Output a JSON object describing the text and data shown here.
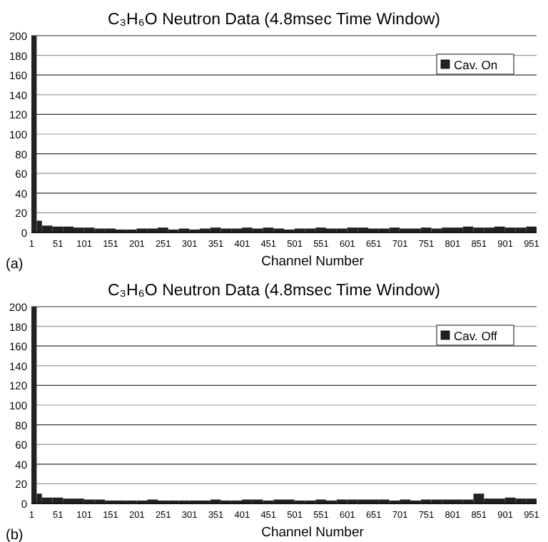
{
  "chart_data": [
    {
      "type": "histogram",
      "title": "C₃H₆O Neutron Data (4.8msec Time Window)",
      "xlabel": "Channel Number",
      "annotations": [
        "(a)"
      ],
      "legend": "top right",
      "grid": "y",
      "bins": [
        0.5,
        10.5,
        20.5,
        40.5,
        60.5,
        80.5,
        100.5,
        120.5,
        140.5,
        160.5,
        180.5,
        200.5,
        220.5,
        240.5,
        260.5,
        280.5,
        300.5,
        320.5,
        340.5,
        360.5,
        380.5,
        400.5,
        420.5,
        440.5,
        460.5,
        480.5,
        500.5,
        520.5,
        540.5,
        560.5,
        580.5,
        600.5,
        620.5,
        640.5,
        660.5,
        680.5,
        700.5,
        720.5,
        740.5,
        760.5,
        780.5,
        800.5,
        820.5,
        840.5,
        860.5,
        880.5,
        900.5,
        920.5,
        940.5,
        960.5
      ],
      "series": [
        {
          "name": "Cav. On",
          "color": "#222222",
          "values": [
            200,
            12,
            7,
            6,
            6,
            5,
            5,
            4,
            4,
            3,
            3,
            4,
            4,
            5,
            3,
            4,
            3,
            4,
            5,
            4,
            4,
            5,
            4,
            5,
            4,
            3,
            4,
            4,
            5,
            4,
            4,
            5,
            5,
            4,
            4,
            5,
            4,
            4,
            5,
            4,
            5,
            5,
            6,
            5,
            5,
            6,
            5,
            5,
            6
          ]
        }
      ],
      "xlim": [
        0.5,
        960.5
      ],
      "xticks": [
        1,
        51,
        101,
        151,
        201,
        251,
        301,
        351,
        401,
        451,
        501,
        551,
        601,
        651,
        701,
        751,
        801,
        851,
        901,
        951
      ],
      "ylim": [
        0,
        200
      ],
      "yticks": [
        0,
        20,
        40,
        60,
        80,
        100,
        120,
        140,
        160,
        180,
        200
      ]
    },
    {
      "type": "histogram",
      "title": "C₃H₆O Neutron Data (4.8msec Time Window)",
      "xlabel": "Channel Number",
      "annotations": [
        "(b)"
      ],
      "legend": "top right",
      "grid": "y",
      "bins": [
        0.5,
        10.5,
        20.5,
        40.5,
        60.5,
        80.5,
        100.5,
        120.5,
        140.5,
        160.5,
        180.5,
        200.5,
        220.5,
        240.5,
        260.5,
        280.5,
        300.5,
        320.5,
        340.5,
        360.5,
        380.5,
        400.5,
        420.5,
        440.5,
        460.5,
        480.5,
        500.5,
        520.5,
        540.5,
        560.5,
        580.5,
        600.5,
        620.5,
        640.5,
        660.5,
        680.5,
        700.5,
        720.5,
        740.5,
        760.5,
        780.5,
        800.5,
        820.5,
        840.5,
        860.5,
        880.5,
        900.5,
        920.5,
        940.5,
        960.5
      ],
      "series": [
        {
          "name": "Cav. Off",
          "color": "#222222",
          "values": [
            200,
            10,
            6,
            6,
            5,
            5,
            4,
            4,
            3,
            3,
            3,
            3,
            4,
            3,
            3,
            3,
            3,
            3,
            4,
            3,
            3,
            4,
            4,
            3,
            4,
            4,
            3,
            3,
            4,
            3,
            4,
            4,
            4,
            4,
            4,
            3,
            4,
            3,
            4,
            4,
            4,
            4,
            4,
            10,
            5,
            5,
            6,
            5,
            5
          ]
        }
      ],
      "xlim": [
        0.5,
        960.5
      ],
      "xticks": [
        1,
        51,
        101,
        151,
        201,
        251,
        301,
        351,
        401,
        451,
        501,
        551,
        601,
        651,
        701,
        751,
        801,
        851,
        901,
        951
      ],
      "ylim": [
        0,
        200
      ],
      "yticks": [
        0,
        20,
        40,
        60,
        80,
        100,
        120,
        140,
        160,
        180,
        200
      ]
    }
  ]
}
